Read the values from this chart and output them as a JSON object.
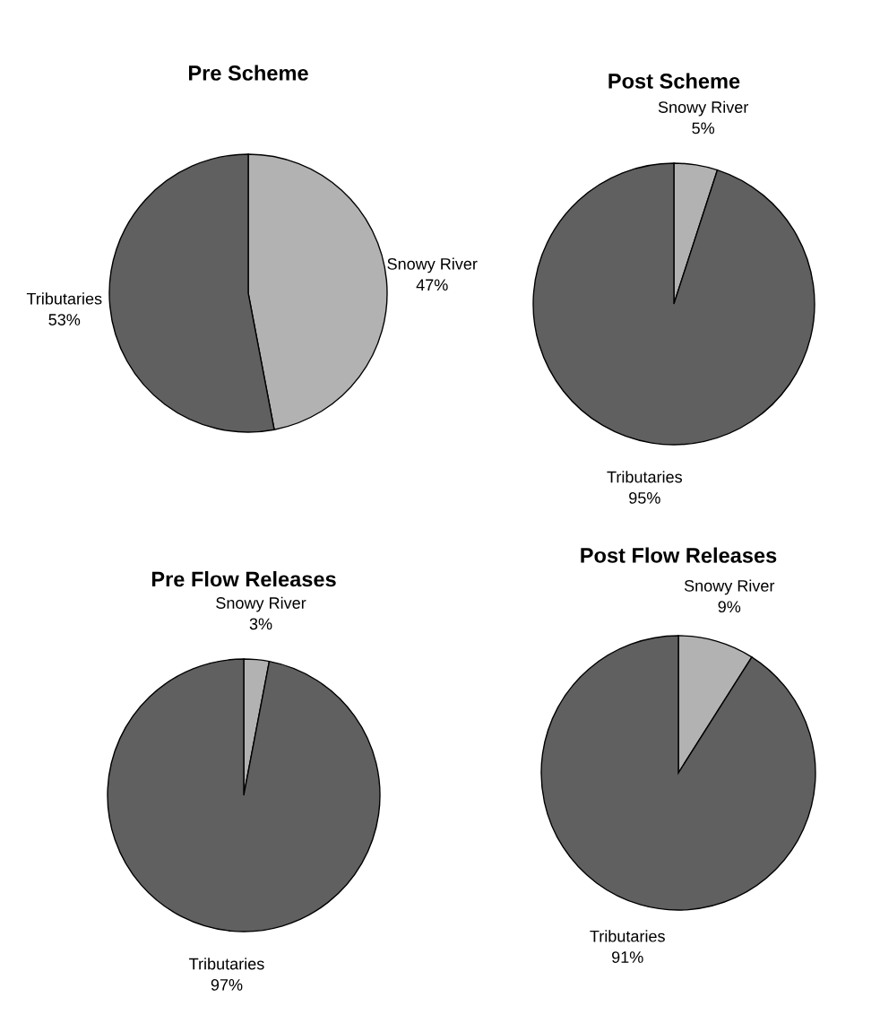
{
  "chart_data": [
    {
      "type": "pie",
      "title": "Pre Scheme",
      "categories": [
        "Snowy River",
        "Tributaries"
      ],
      "values": [
        47,
        53
      ],
      "value_labels": [
        "47%",
        "53%"
      ],
      "colors": [
        "#b2b2b2",
        "#606060"
      ]
    },
    {
      "type": "pie",
      "title": "Post Scheme",
      "categories": [
        "Snowy River",
        "Tributaries"
      ],
      "values": [
        5,
        95
      ],
      "value_labels": [
        "5%",
        "95%"
      ],
      "colors": [
        "#b2b2b2",
        "#606060"
      ]
    },
    {
      "type": "pie",
      "title": "Pre Flow Releases",
      "categories": [
        "Snowy River",
        "Tributaries"
      ],
      "values": [
        3,
        97
      ],
      "value_labels": [
        "3%",
        "97%"
      ],
      "colors": [
        "#b2b2b2",
        "#606060"
      ]
    },
    {
      "type": "pie",
      "title": "Post Flow Releases",
      "categories": [
        "Snowy River",
        "Tributaries"
      ],
      "values": [
        9,
        91
      ],
      "value_labels": [
        "9%",
        "91%"
      ],
      "colors": [
        "#b2b2b2",
        "#606060"
      ]
    }
  ]
}
